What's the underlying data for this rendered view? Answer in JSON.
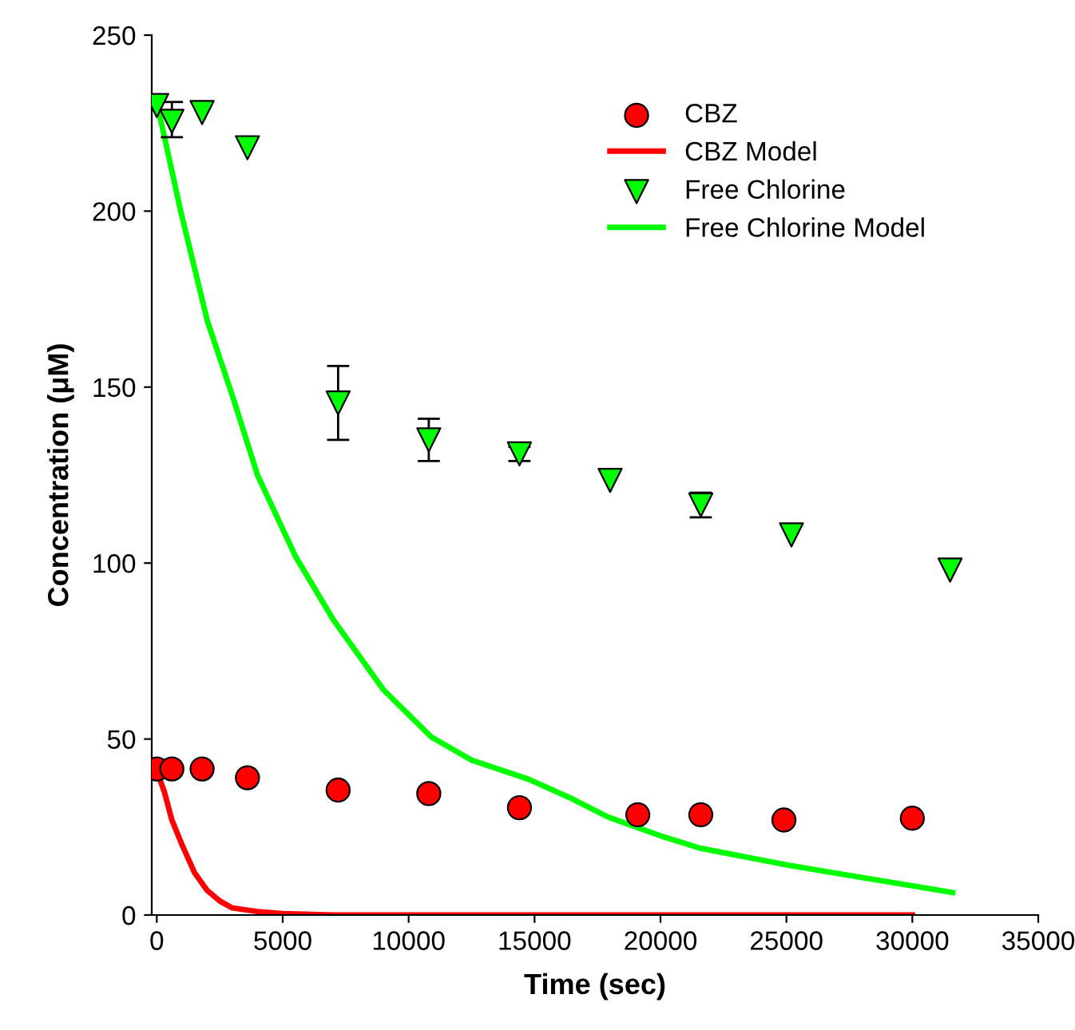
{
  "chart_data": {
    "type": "scatter",
    "xlabel": "Time (sec)",
    "ylabel": "Concentration (μM)",
    "xlim": [
      -200,
      35000
    ],
    "ylim": [
      0,
      250
    ],
    "xticks": [
      0,
      5000,
      10000,
      15000,
      20000,
      25000,
      30000,
      35000
    ],
    "yticks": [
      0,
      50,
      100,
      150,
      200,
      250
    ],
    "grid": false,
    "legend": "top right",
    "series": [
      {
        "name": "CBZ",
        "marker": "circle",
        "color": "#ff0000",
        "x": [
          0,
          600,
          1800,
          3600,
          7200,
          10800,
          14400,
          19100,
          21600,
          24900,
          30000
        ],
        "values": [
          41.5,
          41.5,
          41.5,
          39,
          35.5,
          34.5,
          30.5,
          28.5,
          28.5,
          27,
          27.5
        ]
      },
      {
        "name": "CBZ Model",
        "type": "line",
        "marker": "none",
        "color": "#ff0000",
        "x": [
          0,
          300,
          600,
          1000,
          1500,
          2000,
          2500,
          3000,
          4000,
          5000,
          7000,
          30000
        ],
        "values": [
          41,
          35,
          27,
          20,
          12,
          7,
          4,
          2,
          1,
          0.4,
          0,
          0
        ]
      },
      {
        "name": "Free Chlorine",
        "marker": "triangle",
        "color": "#00ff00",
        "x": [
          0,
          600,
          1800,
          3600,
          7200,
          10800,
          14400,
          18000,
          21600,
          25200,
          31500
        ],
        "values": [
          230,
          225.5,
          228,
          218,
          145.5,
          135,
          131,
          123.5,
          116.5,
          108,
          98
        ],
        "errors": [
          null,
          [
            221,
            231
          ],
          null,
          null,
          [
            135,
            156
          ],
          [
            129,
            141
          ],
          [
            129,
            133
          ],
          null,
          [
            113,
            120
          ],
          null,
          null
        ]
      },
      {
        "name": "Free Chlorine Model",
        "type": "line",
        "marker": "none",
        "color": "#00ff00",
        "x": [
          0,
          950,
          2000,
          3050,
          4000,
          5500,
          7000,
          9000,
          10900,
          12500,
          14760,
          16500,
          17900,
          20000,
          21570,
          25200,
          31600
        ],
        "values": [
          231,
          200,
          169,
          146.5,
          125,
          102,
          84,
          64,
          50.6,
          44,
          38.6,
          33,
          27.9,
          22.5,
          19,
          14,
          6.4
        ]
      }
    ]
  }
}
